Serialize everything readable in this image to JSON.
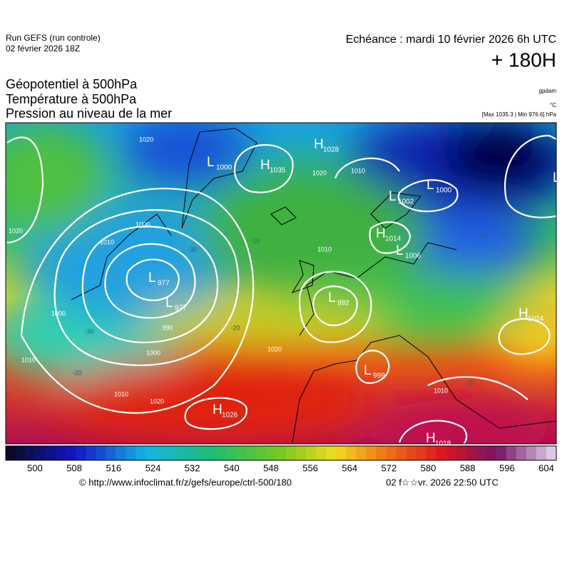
{
  "header": {
    "run": "Run GEFS (run controle)",
    "date": "02 février 2026 18Z",
    "echeance": "Echéance : mardi 10 février 2026 6h UTC",
    "lead": "+ 180H"
  },
  "titles": [
    "Géopotentiel à 500hPa",
    "Température à 500hPa",
    "Pression au niveau de la mer"
  ],
  "units": [
    "gpdam",
    "°C",
    "[Max 1035.3 | Min 976.6] hPa"
  ],
  "centers": [
    {
      "kind": "L",
      "value": 1000
    },
    {
      "kind": "H",
      "value": 1035
    },
    {
      "kind": "H",
      "value": 1028
    },
    {
      "kind": "L",
      "value": 1002
    },
    {
      "kind": "L",
      "value": 1000
    },
    {
      "kind": "L"
    },
    {
      "kind": "H",
      "value": 1014
    },
    {
      "kind": "L",
      "value": 1006
    },
    {
      "kind": "L",
      "value": 977
    },
    {
      "kind": "L",
      "value": 977
    },
    {
      "kind": "L",
      "value": 992
    },
    {
      "kind": "L",
      "value": 999
    },
    {
      "kind": "H",
      "value": 1024
    },
    {
      "kind": "H",
      "value": 1026
    },
    {
      "kind": "H",
      "value": 1018
    }
  ],
  "isobar_labels": [
    1020,
    1010,
    1000,
    1000,
    1010,
    1010,
    1020,
    1000,
    990,
    1020,
    1010,
    1010,
    1020,
    1020,
    1010
  ],
  "temperature_labels": [
    -40,
    -40,
    -30,
    -30,
    -20,
    -20,
    -20,
    -10
  ],
  "colorbar_labels": [
    500,
    508,
    516,
    524,
    532,
    540,
    548,
    556,
    564,
    572,
    580,
    588,
    596,
    604
  ],
  "footer": {
    "url": "© http://www.infoclimat.fr/z/gefs/europe/ctrl-500/180",
    "stamp": "02 f☆☆vr. 2026 22:50 UTC"
  }
}
